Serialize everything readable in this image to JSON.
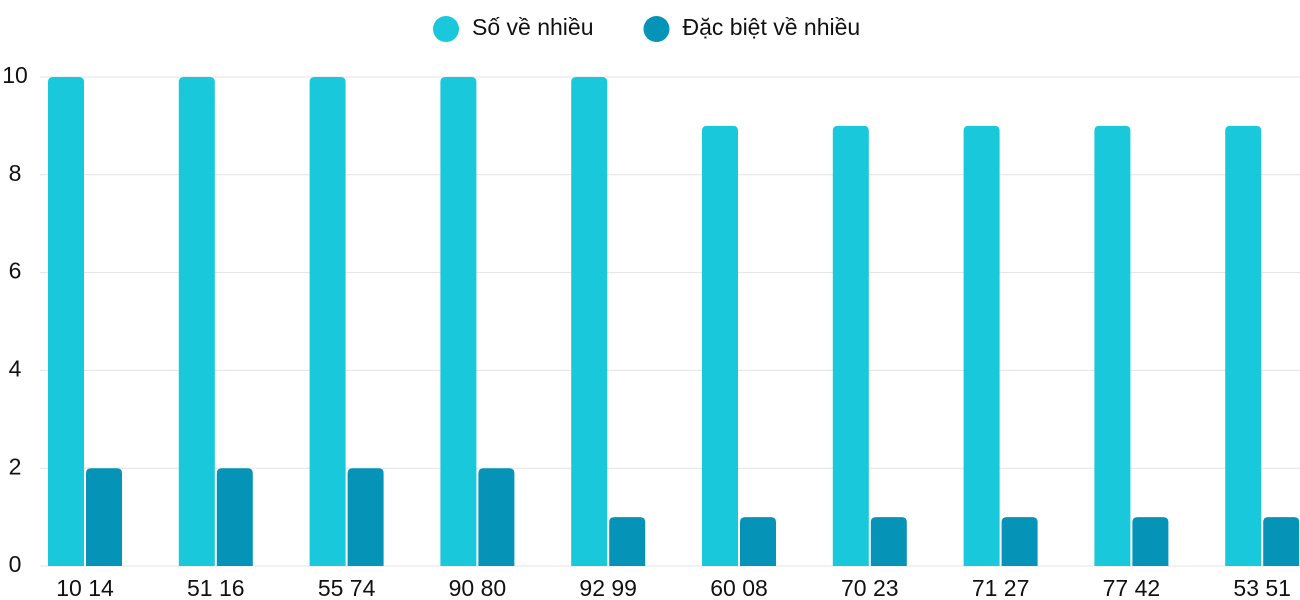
{
  "chart_data": {
    "type": "bar",
    "categories": [
      "10 14",
      "51 16",
      "55 74",
      "90 80",
      "92 99",
      "60 08",
      "70 23",
      "71 27",
      "77 42",
      "53 51"
    ],
    "series": [
      {
        "name": "Số về nhiều",
        "color": "#1ac8db",
        "values": [
          10,
          10,
          10,
          10,
          10,
          9,
          9,
          9,
          9,
          9
        ]
      },
      {
        "name": "Đặc biệt về nhiều",
        "color": "#0594b8",
        "values": [
          2,
          2,
          2,
          2,
          1,
          1,
          1,
          1,
          1,
          1
        ]
      }
    ],
    "ylim": [
      0,
      10
    ],
    "yticks": [
      0,
      2,
      4,
      6,
      8,
      10
    ],
    "grid": true,
    "legend": "top"
  }
}
